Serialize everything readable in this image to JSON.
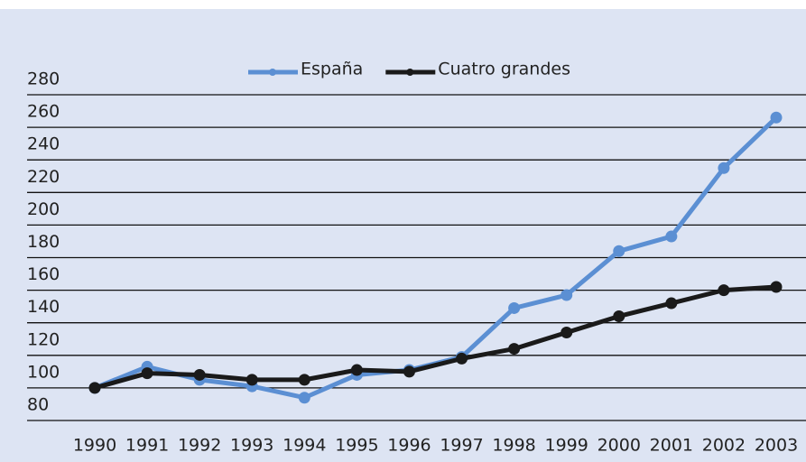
{
  "chart_data": {
    "type": "line",
    "categories": [
      "1990",
      "1991",
      "1992",
      "1993",
      "1994",
      "1995",
      "1996",
      "1997",
      "1998",
      "1999",
      "2000",
      "2001",
      "2002",
      "2003"
    ],
    "series": [
      {
        "name": "España",
        "color": "#5b8fd3",
        "values": [
          100,
          113,
          105,
          101,
          94,
          108,
          111,
          119,
          149,
          157,
          184,
          193,
          235,
          266
        ]
      },
      {
        "name": "Cuatro grandes",
        "color": "#1a1a1a",
        "values": [
          100,
          109,
          108,
          105,
          105,
          111,
          110,
          118,
          124,
          134,
          144,
          152,
          160,
          162
        ]
      }
    ],
    "ylim": [
      80,
      280
    ],
    "yticks": [
      80,
      100,
      120,
      140,
      160,
      180,
      200,
      220,
      240,
      260,
      280
    ],
    "grid": true,
    "legend": "top"
  }
}
